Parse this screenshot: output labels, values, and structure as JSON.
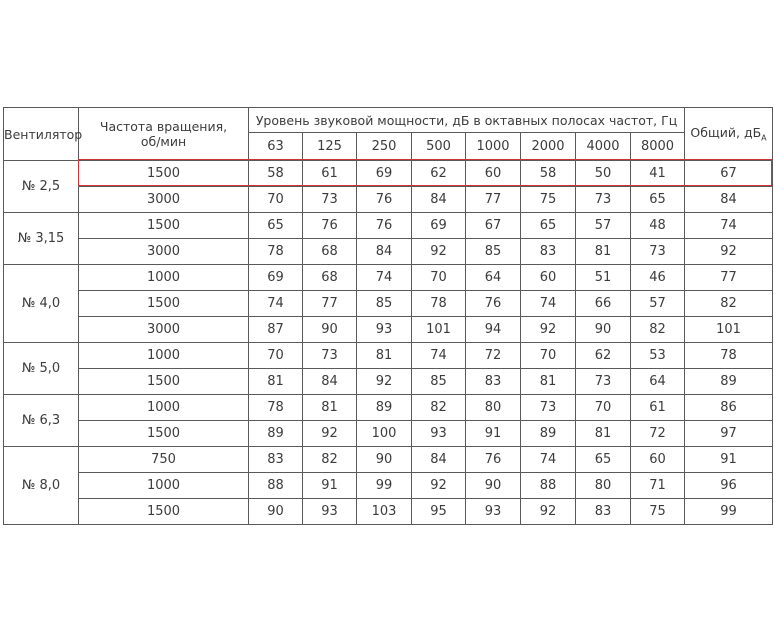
{
  "table": {
    "headers": {
      "fan": "Вентилятор",
      "speed": "Частота вращения, об/мин",
      "bands_title": "Уровень звуковой мощности, дБ в октавных полосах частот, Гц",
      "total": "Общий, дБ",
      "total_sub": "A",
      "bands": [
        63,
        125,
        250,
        500,
        1000,
        2000,
        4000,
        8000
      ]
    },
    "groups": [
      {
        "fan": "№ 2,5",
        "rows": [
          [
            1500,
            58,
            61,
            69,
            62,
            60,
            58,
            50,
            41,
            67
          ],
          [
            3000,
            70,
            73,
            76,
            84,
            77,
            75,
            73,
            65,
            84
          ]
        ]
      },
      {
        "fan": "№ 3,15",
        "rows": [
          [
            1500,
            65,
            76,
            76,
            69,
            67,
            65,
            57,
            48,
            74
          ],
          [
            3000,
            78,
            68,
            84,
            92,
            85,
            83,
            81,
            73,
            92
          ]
        ]
      },
      {
        "fan": "№ 4,0",
        "rows": [
          [
            1000,
            69,
            68,
            74,
            70,
            64,
            60,
            51,
            46,
            77
          ],
          [
            1500,
            74,
            77,
            85,
            78,
            76,
            74,
            66,
            57,
            82
          ],
          [
            3000,
            87,
            90,
            93,
            101,
            94,
            92,
            90,
            82,
            101
          ]
        ]
      },
      {
        "fan": "№ 5,0",
        "rows": [
          [
            1000,
            70,
            73,
            81,
            74,
            72,
            70,
            62,
            53,
            78
          ],
          [
            1500,
            81,
            84,
            92,
            85,
            83,
            81,
            73,
            64,
            89
          ]
        ]
      },
      {
        "fan": "№ 6,3",
        "rows": [
          [
            1000,
            78,
            81,
            89,
            82,
            80,
            73,
            70,
            61,
            86
          ],
          [
            1500,
            89,
            92,
            100,
            93,
            91,
            89,
            81,
            72,
            97
          ]
        ]
      },
      {
        "fan": "№ 8,0",
        "rows": [
          [
            750,
            83,
            82,
            90,
            84,
            76,
            74,
            65,
            60,
            91
          ],
          [
            1000,
            88,
            91,
            99,
            92,
            90,
            88,
            80,
            71,
            96
          ],
          [
            1500,
            90,
            93,
            103,
            95,
            93,
            92,
            83,
            75,
            99
          ]
        ]
      }
    ]
  }
}
